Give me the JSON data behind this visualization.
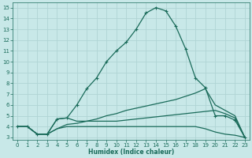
{
  "bg_color": "#c8e8e8",
  "grid_color": "#b0d4d4",
  "line_color": "#1a6b5a",
  "xlabel": "Humidex (Indice chaleur)",
  "xlim": [
    -0.5,
    23.5
  ],
  "ylim": [
    2.8,
    15.5
  ],
  "xticks": [
    0,
    1,
    2,
    3,
    4,
    5,
    6,
    7,
    8,
    9,
    10,
    11,
    12,
    13,
    14,
    15,
    16,
    17,
    18,
    19,
    20,
    21,
    22,
    23
  ],
  "yticks": [
    3,
    4,
    5,
    6,
    7,
    8,
    9,
    10,
    11,
    12,
    13,
    14,
    15
  ],
  "series": [
    {
      "x": [
        0,
        1,
        2,
        3,
        4,
        5,
        6,
        7,
        8,
        9,
        10,
        11,
        12,
        13,
        14,
        15,
        16,
        17,
        18,
        19,
        20,
        21,
        22,
        23
      ],
      "y": [
        4.0,
        4.0,
        3.3,
        3.3,
        4.7,
        4.8,
        6.0,
        7.5,
        8.5,
        10.0,
        11.0,
        11.8,
        13.0,
        14.5,
        15.0,
        14.7,
        13.3,
        11.2,
        8.5,
        7.6,
        5.0,
        5.0,
        4.6,
        3.0
      ],
      "marker": "+",
      "lw": 0.9
    },
    {
      "x": [
        0,
        1,
        2,
        3,
        4,
        5,
        6,
        7,
        8,
        9,
        10,
        11,
        12,
        13,
        14,
        15,
        16,
        17,
        18,
        19,
        20,
        21,
        22,
        23
      ],
      "y": [
        4.0,
        4.0,
        3.3,
        3.3,
        3.8,
        4.2,
        4.3,
        4.5,
        4.7,
        5.0,
        5.2,
        5.5,
        5.7,
        5.9,
        6.1,
        6.3,
        6.5,
        6.8,
        7.1,
        7.5,
        6.0,
        5.5,
        5.0,
        3.0
      ],
      "marker": null,
      "lw": 0.9
    },
    {
      "x": [
        0,
        1,
        2,
        3,
        4,
        5,
        6,
        7,
        8,
        9,
        10,
        11,
        12,
        13,
        14,
        15,
        16,
        17,
        18,
        19,
        20,
        21,
        22,
        23
      ],
      "y": [
        4.0,
        4.0,
        3.3,
        3.3,
        4.7,
        4.8,
        4.5,
        4.5,
        4.5,
        4.5,
        4.5,
        4.6,
        4.7,
        4.8,
        4.9,
        5.0,
        5.1,
        5.2,
        5.3,
        5.4,
        5.5,
        5.2,
        4.8,
        3.0
      ],
      "marker": null,
      "lw": 0.9
    },
    {
      "x": [
        0,
        1,
        2,
        3,
        4,
        5,
        6,
        7,
        8,
        9,
        10,
        11,
        12,
        13,
        14,
        15,
        16,
        17,
        18,
        19,
        20,
        21,
        22,
        23
      ],
      "y": [
        4.0,
        4.0,
        3.3,
        3.3,
        3.8,
        4.0,
        4.0,
        4.0,
        4.0,
        4.0,
        4.0,
        4.0,
        4.0,
        4.0,
        4.0,
        4.0,
        4.0,
        4.0,
        4.0,
        3.8,
        3.5,
        3.3,
        3.2,
        3.0
      ],
      "marker": null,
      "lw": 0.9
    }
  ]
}
